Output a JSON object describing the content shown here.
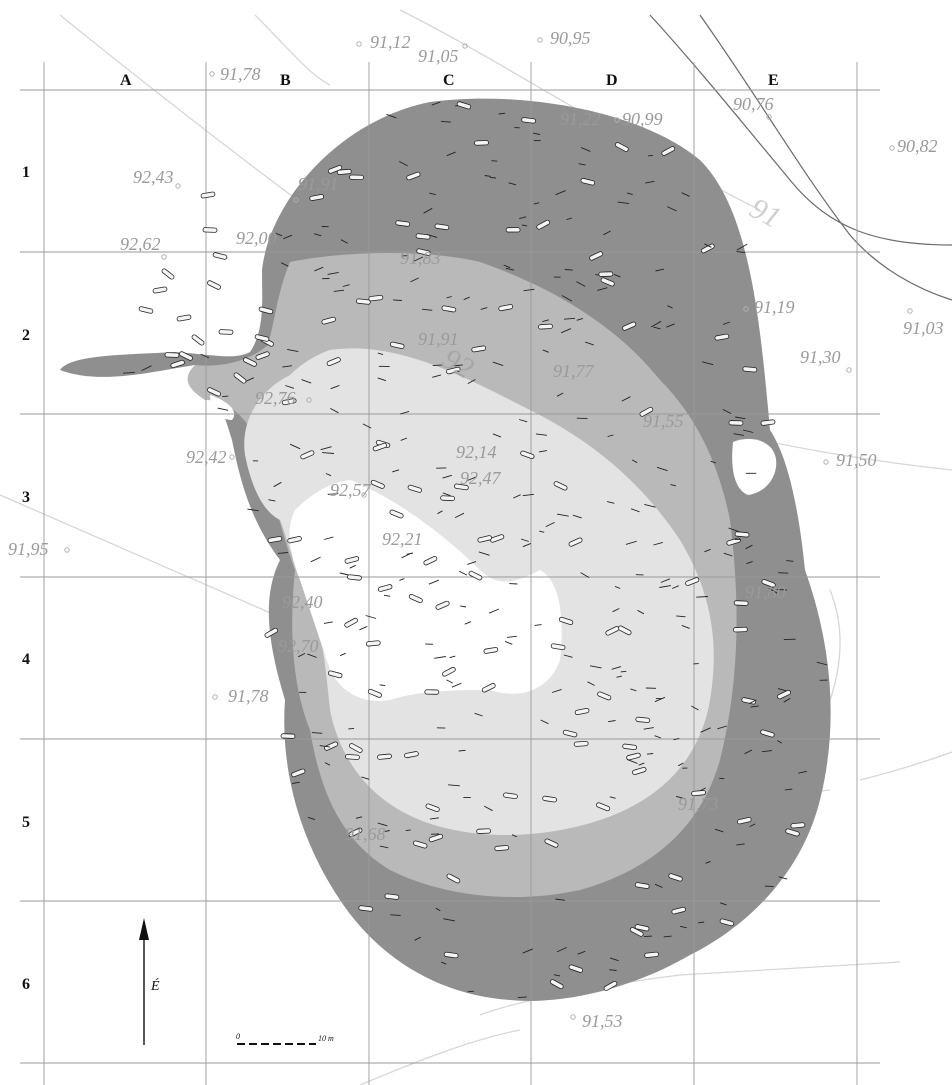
{
  "columns": [
    "A",
    "B",
    "C",
    "D",
    "E"
  ],
  "rows": [
    "1",
    "2",
    "3",
    "4",
    "5",
    "6"
  ],
  "elevations": {
    "e1": "91,12",
    "e2": "91,05",
    "e3": "90,95",
    "e4": "91,78",
    "e5": "90,76",
    "e6": "91,22",
    "e7": "90,99",
    "e8": "90,82",
    "e9": "92,43",
    "e10": "91,91",
    "e11": "92,62",
    "e12": "92,00",
    "e13": "91,83",
    "e14": "91,19",
    "e15": "91,03",
    "e16": "91,91",
    "e17": "91,30",
    "e18": "91,77",
    "e19": "92,76",
    "e20": "91,55",
    "e21": "92,42",
    "e22": "92,14",
    "e23": "91,50",
    "e24": "92,57",
    "e25": "92,47",
    "e26": "91,95",
    "e27": "92,21",
    "e28": "91,80",
    "e29": "92,40",
    "e30": "92,70",
    "e31": "91,78",
    "e32": "91,73",
    "e33": "91,68",
    "e34": "91,53"
  },
  "contour_labels": {
    "c91": "91",
    "c92": "92"
  },
  "north_arrow": {
    "label": "É"
  },
  "scale_bar": {
    "start_label": "0",
    "end_label": "10 m"
  }
}
